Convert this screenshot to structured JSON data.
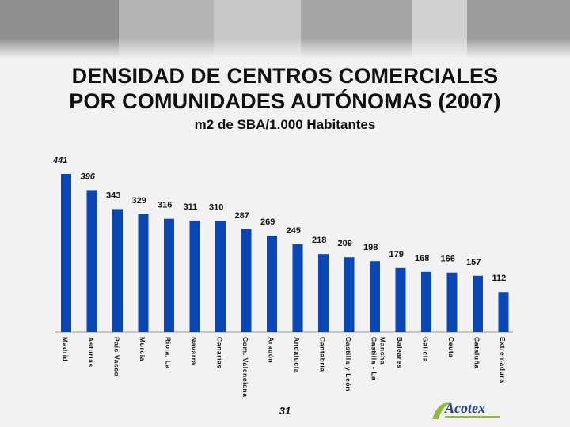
{
  "header": {
    "title_line1": "DENSIDAD DE CENTROS COMERCIALES",
    "title_line2": "POR COMUNIDADES AUTÓNOMAS (2007)",
    "subtitle": "m2 de SBA/1.000 Habitantes"
  },
  "footer": {
    "page_number": "31",
    "logo_text": "Acotex"
  },
  "colors": {
    "bar": "#0a47b6",
    "text": "#111111",
    "background": "#f2f2f2",
    "logo_blue": "#1f3f8f",
    "logo_green": "#8cbd3a"
  },
  "chart_data": {
    "type": "bar",
    "categories": [
      "Madrid",
      "Asturias",
      "País Vasco",
      "Murcia",
      "Rioja, La",
      "Navarra",
      "Canarias",
      "Com. Valenciana",
      "Aragón",
      "Andalucía",
      "Cantabria",
      "Castilla y León",
      "Castilla - La Mancha",
      "Baleares",
      "Galicia",
      "Ceuta",
      "Cataluña",
      "Extremadura"
    ],
    "values": [
      441,
      396,
      343,
      329,
      316,
      311,
      310,
      287,
      269,
      245,
      218,
      209,
      198,
      179,
      168,
      166,
      157,
      112
    ],
    "data_labels": [
      "441",
      "396",
      "343",
      "329",
      "316",
      "311",
      "310",
      "287",
      "269",
      "245",
      "218",
      "209",
      "198",
      "179",
      "168",
      "166",
      "157",
      "112"
    ],
    "title": "m2 de SBA/1.000 Habitantes",
    "xlabel": "",
    "ylabel": "",
    "ylim": [
      0,
      441
    ],
    "grid": false,
    "legend": "none"
  }
}
